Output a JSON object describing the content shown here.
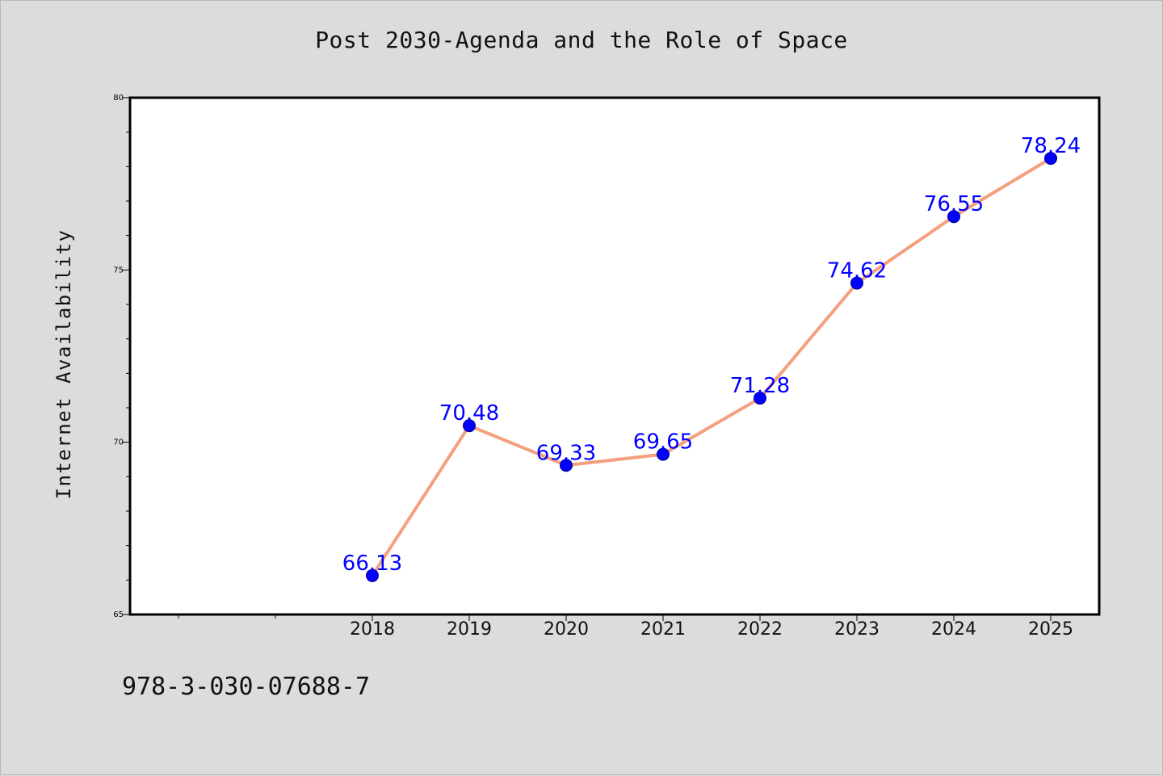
{
  "chart_data": {
    "type": "line",
    "title": "Post 2030-Agenda and the Role of Space",
    "xlabel": "",
    "ylabel": "Internet Availability",
    "categories": [
      "2018",
      "2019",
      "2020",
      "2021",
      "2022",
      "2023",
      "2024",
      "2025"
    ],
    "values": [
      66.13,
      70.48,
      69.33,
      69.65,
      71.28,
      74.62,
      76.55,
      78.24
    ],
    "data_labels": [
      "66.13",
      "70.48",
      "69.33",
      "69.65",
      "71.28",
      "74.62",
      "76.55",
      "78.24"
    ],
    "ylim": [
      65,
      80
    ],
    "yticks": [
      65,
      70,
      75,
      80
    ],
    "ytick_labels": [
      "65",
      "70",
      "75",
      "80"
    ],
    "grid": false,
    "colors": {
      "line": "#f4a07f",
      "marker": "#0000ff",
      "marker_edge": "#00008b",
      "label": "#0000ff",
      "background": "#dcdcdc",
      "plot_area": "#ffffff"
    }
  },
  "footer": {
    "isbn": "978-3-030-07688-7"
  }
}
